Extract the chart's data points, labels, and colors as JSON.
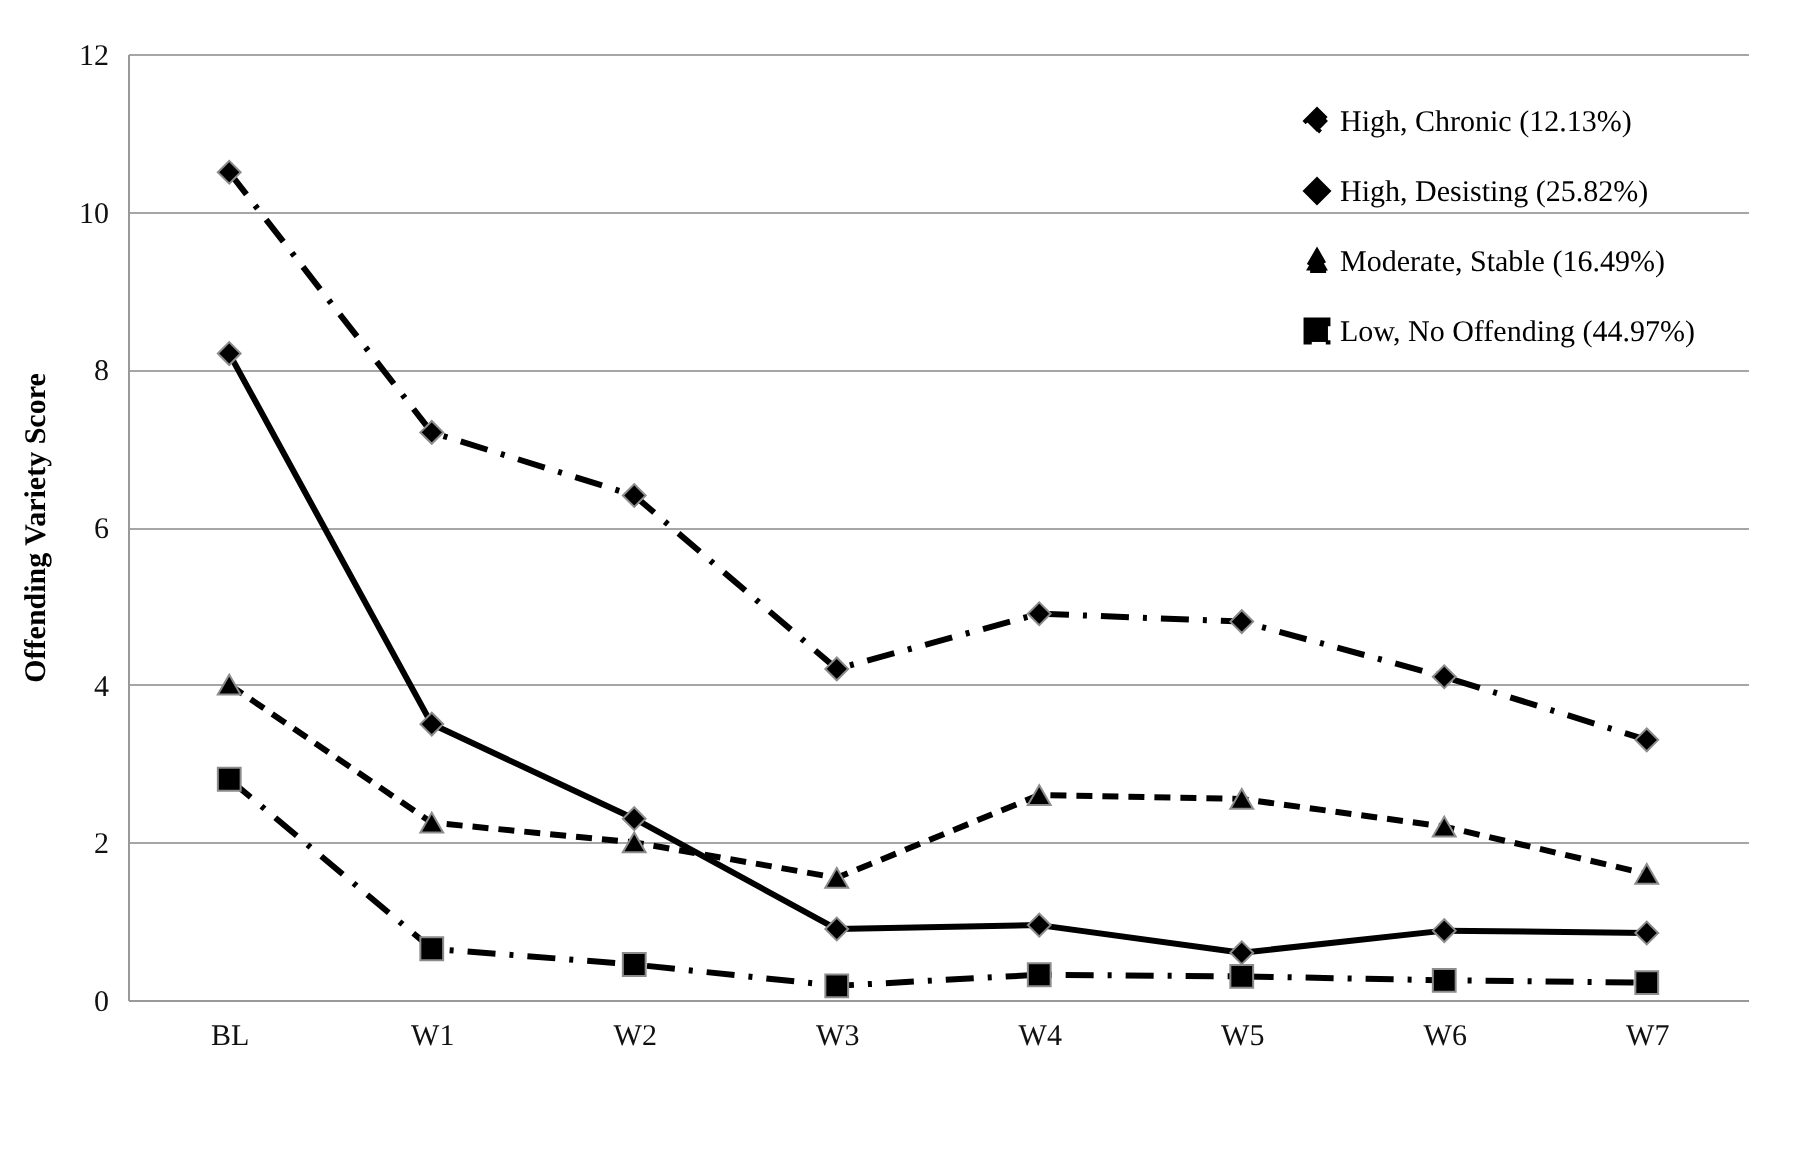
{
  "chart_data": {
    "type": "line",
    "ylabel": "Offending Variety Score",
    "categories": [
      "BL",
      "W1",
      "W2",
      "W3",
      "W4",
      "W5",
      "W6",
      "W7"
    ],
    "series": [
      {
        "name": "High, Chronic (12.13%)",
        "color": "#000000",
        "line_style": "dashdot",
        "marker": "diamond",
        "values": [
          10.5,
          7.2,
          6.4,
          4.2,
          4.9,
          4.8,
          4.1,
          3.3
        ]
      },
      {
        "name": "High, Desisting (25.82%)",
        "color": "#000000",
        "line_style": "solid",
        "marker": "diamond",
        "values": [
          8.2,
          3.5,
          2.3,
          0.9,
          0.95,
          0.6,
          0.88,
          0.85
        ]
      },
      {
        "name": "Moderate, Stable (16.49%)",
        "color": "#000000",
        "line_style": "dashed",
        "marker": "triangle",
        "values": [
          4.0,
          2.25,
          2.0,
          1.55,
          2.6,
          2.55,
          2.2,
          1.6
        ]
      },
      {
        "name": "Low, No Offending (44.97%)",
        "color": "#000000",
        "line_style": "dashdot",
        "marker": "square",
        "values": [
          2.8,
          0.65,
          0.45,
          0.18,
          0.32,
          0.3,
          0.25,
          0.22
        ]
      }
    ],
    "ylim": [
      0,
      12
    ],
    "yticks": [
      0,
      2,
      4,
      6,
      8,
      10,
      12
    ],
    "grid": "y",
    "legend": "top right"
  }
}
